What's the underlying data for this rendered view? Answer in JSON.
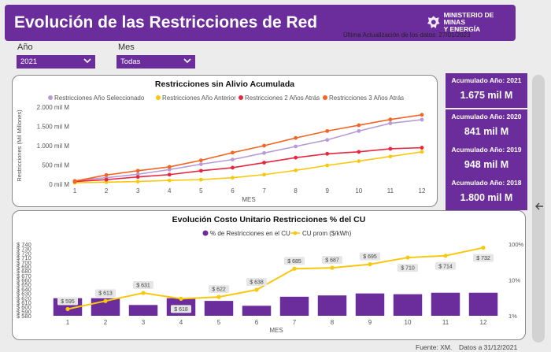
{
  "header": {
    "title": "Evolución de las Restricciones de Red",
    "logo_line1": "MINISTERIO DE MINAS",
    "logo_line2": "Y ENERGÍA",
    "last_update": "Última Actualización de los datos: 27/01/2023"
  },
  "filters": {
    "year_label": "Año",
    "year_value": "2021",
    "month_label": "Mes",
    "month_value": "Todas"
  },
  "kpis": [
    {
      "label": "Acumulado Año: 2021",
      "value": "1.675 mil M"
    },
    {
      "label": "Acumulado Año: 2020",
      "value": "841 mil M"
    },
    {
      "label": "Acumulado Año: 2019",
      "value": "948 mil M"
    },
    {
      "label": "Acumulado Año: 2018",
      "value": "1.800 mil M"
    }
  ],
  "footer": {
    "source": "Fuente: XM.",
    "date": "Datos a 31/12/2021"
  },
  "colors": {
    "purple": "#6b2d9b",
    "lilac": "#b99ad8",
    "yellow": "#f9c80e",
    "red": "#e8263f",
    "orange": "#f26522"
  },
  "icons": [
    "ministry-logo-icon",
    "chevron-down-icon",
    "arrow-left-icon"
  ],
  "chart_data": [
    {
      "type": "line",
      "title": "Restricciones sin Alivio Acumulada",
      "xlabel": "MES",
      "ylabel": "Restricciones (Mil Millones)",
      "x": [
        1,
        2,
        3,
        4,
        5,
        6,
        7,
        8,
        9,
        10,
        11,
        12
      ],
      "ylim": [
        0,
        2000
      ],
      "yticks": [
        "0 mil M",
        "500 mil M",
        "1.000 mil M",
        "1.500 mil M",
        "2.000 mil M"
      ],
      "legend_position": "top",
      "grid": false,
      "series": [
        {
          "name": "Restricciones Año Seleccionado",
          "color": "#b99ad8",
          "values": [
            90,
            170,
            260,
            380,
            520,
            640,
            810,
            980,
            1150,
            1380,
            1580,
            1675
          ]
        },
        {
          "name": "Restricciones Año Anterior",
          "color": "#f9c80e",
          "values": [
            40,
            55,
            70,
            100,
            120,
            170,
            250,
            360,
            490,
            600,
            720,
            841
          ]
        },
        {
          "name": "Restricciones 2 Años Atrás",
          "color": "#e8263f",
          "values": [
            70,
            120,
            190,
            250,
            350,
            430,
            560,
            690,
            790,
            840,
            920,
            948
          ]
        },
        {
          "name": "Restricciones 3 Años Atrás",
          "color": "#f26522",
          "values": [
            80,
            240,
            350,
            450,
            620,
            820,
            1000,
            1200,
            1380,
            1530,
            1680,
            1800
          ]
        }
      ]
    },
    {
      "type": "bar",
      "title": "Evolución Costo Unitario Restricciones % del CU",
      "xlabel": "MES",
      "categories": [
        "1",
        "2",
        "3",
        "4",
        "5",
        "6",
        "7",
        "8",
        "9",
        "10",
        "11",
        "12"
      ],
      "legend_position": "top",
      "grid": false,
      "left_axis": {
        "ylim": [
          580,
          740
        ],
        "yticks": [
          "$ 580",
          "$ 590",
          "$ 600",
          "$ 610",
          "$ 620",
          "$ 630",
          "$ 640",
          "$ 650",
          "$ 660",
          "$ 670",
          "$ 680",
          "$ 690",
          "$ 700",
          "$ 710",
          "$ 720",
          "$ 730",
          "$ 740"
        ]
      },
      "right_axis": {
        "scale": "log",
        "ylim": [
          1,
          100
        ],
        "yticks": [
          "1%",
          "10%",
          "100%"
        ]
      },
      "series": [
        {
          "name": "% de Restricciones en el CU",
          "color": "#6b2d9b",
          "axis": "right",
          "values": [
            3.1,
            3.1,
            2.0,
            3.1,
            2.6,
            1.9,
            3.4,
            3.7,
            4.2,
            4.0,
            4.4,
            4.4
          ]
        },
        {
          "name": "CU prom ($/kWh)",
          "color": "#f9c80e",
          "axis": "left",
          "values": [
            595,
            613,
            631,
            618,
            622,
            638,
            685,
            687,
            695,
            710,
            714,
            732
          ],
          "labels": [
            "$ 595",
            "$ 613",
            "$ 631",
            "$ 618",
            "$ 622",
            "$ 638",
            "$ 685",
            "$ 687",
            "$ 695",
            "$ 710",
            "$ 714",
            "$ 732"
          ]
        }
      ]
    }
  ]
}
